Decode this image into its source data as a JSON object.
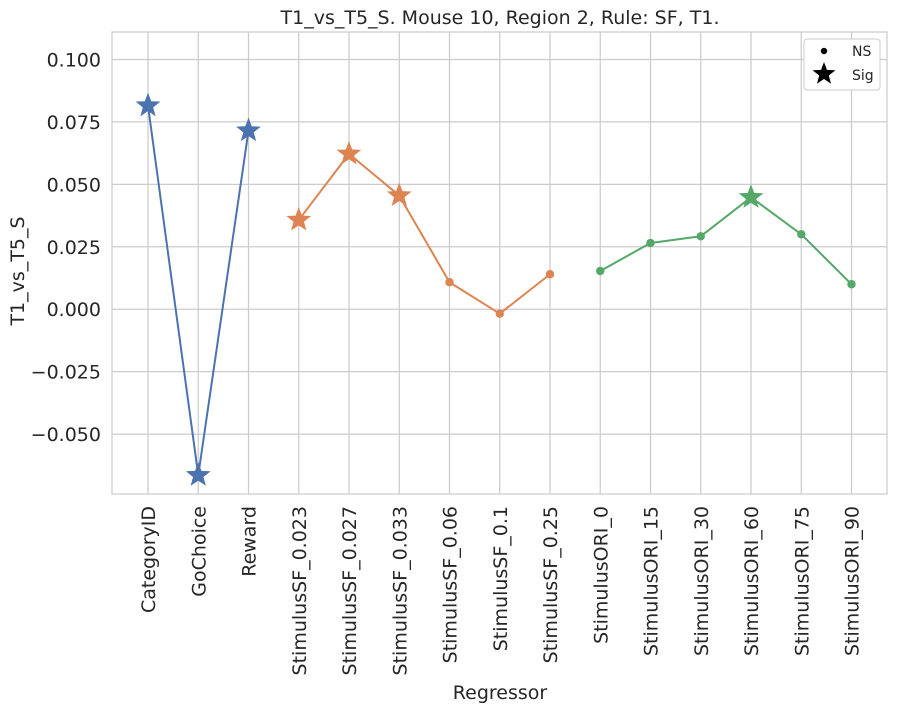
{
  "chart_data": {
    "type": "line",
    "title": "T1_vs_T5_S. Mouse 10, Region 2, Rule: SF, T1.",
    "xlabel": "Regressor",
    "ylabel": "T1_vs_T5_S",
    "categories": [
      "CategoryID",
      "GoChoice",
      "Reward",
      "StimulusSF_0.023",
      "StimulusSF_0.027",
      "StimulusSF_0.033",
      "StimulusSF_0.06",
      "StimulusSF_0.1",
      "StimulusSF_0.25",
      "StimulusORI_0",
      "StimulusORI_15",
      "StimulusORI_30",
      "StimulusORI_60",
      "StimulusORI_75",
      "StimulusORI_90"
    ],
    "ylim": [
      -0.074,
      0.111
    ],
    "yticks": [
      -0.05,
      -0.025,
      0.0,
      0.025,
      0.05,
      0.075,
      0.1
    ],
    "ytick_labels": [
      "−0.050",
      "−0.025",
      "0.000",
      "0.025",
      "0.050",
      "0.075",
      "0.100"
    ],
    "grid": true,
    "legend": {
      "placement": "top-right",
      "entries": [
        {
          "label": "NS",
          "marker": "dot"
        },
        {
          "label": "Sig",
          "marker": "star"
        }
      ]
    },
    "series": [
      {
        "color": "#4c72b0",
        "points": [
          {
            "category": "CategoryID",
            "value": 0.0815,
            "sig": true
          },
          {
            "category": "GoChoice",
            "value": -0.0665,
            "sig": true
          },
          {
            "category": "Reward",
            "value": 0.0715,
            "sig": true
          }
        ]
      },
      {
        "color": "#dd8452",
        "points": [
          {
            "category": "StimulusSF_0.023",
            "value": 0.0357,
            "sig": true
          },
          {
            "category": "StimulusSF_0.027",
            "value": 0.0622,
            "sig": true
          },
          {
            "category": "StimulusSF_0.033",
            "value": 0.0455,
            "sig": true
          },
          {
            "category": "StimulusSF_0.06",
            "value": 0.0108,
            "sig": false
          },
          {
            "category": "StimulusSF_0.1",
            "value": -0.0018,
            "sig": false
          },
          {
            "category": "StimulusSF_0.25",
            "value": 0.014,
            "sig": false
          }
        ]
      },
      {
        "color": "#55a868",
        "points": [
          {
            "category": "StimulusORI_0",
            "value": 0.0153,
            "sig": false
          },
          {
            "category": "StimulusORI_15",
            "value": 0.0265,
            "sig": false
          },
          {
            "category": "StimulusORI_30",
            "value": 0.0292,
            "sig": false
          },
          {
            "category": "StimulusORI_60",
            "value": 0.0448,
            "sig": true
          },
          {
            "category": "StimulusORI_75",
            "value": 0.03,
            "sig": false
          },
          {
            "category": "StimulusORI_90",
            "value": 0.01,
            "sig": false
          }
        ]
      }
    ]
  }
}
